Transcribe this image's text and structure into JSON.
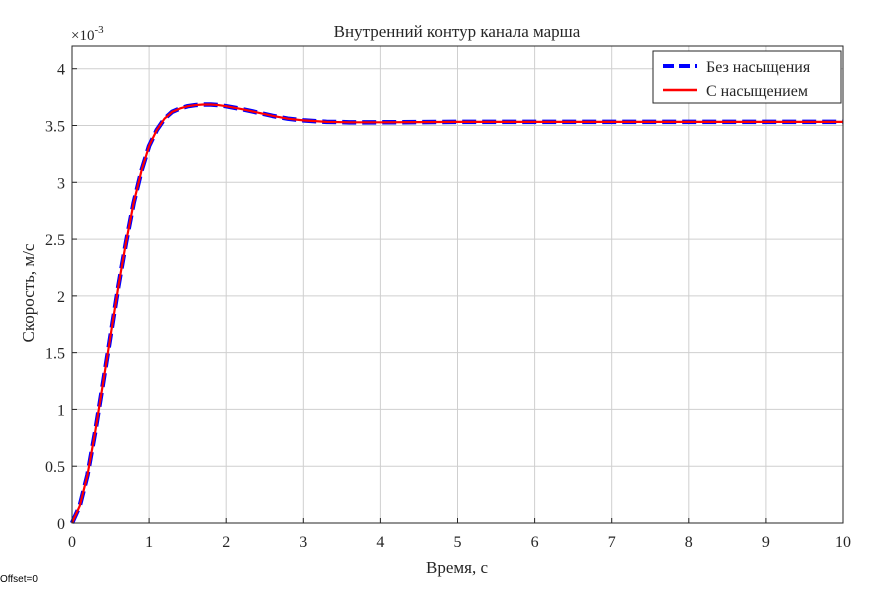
{
  "footer": {
    "offset_text": "Offset=0"
  },
  "chart_data": {
    "type": "line",
    "title": "Внутренний контур канала марша",
    "xlabel": "Время, с",
    "ylabel": "Скорость, м/с",
    "y_multiplier_base": "×10",
    "y_multiplier_exp": "-3",
    "xlim": [
      0,
      10
    ],
    "ylim": [
      0,
      4.2
    ],
    "x_ticks": [
      0,
      1,
      2,
      3,
      4,
      5,
      6,
      7,
      8,
      9,
      10
    ],
    "y_ticks": [
      0,
      0.5,
      1,
      1.5,
      2,
      2.5,
      3,
      3.5,
      4
    ],
    "y_tick_labels": [
      "0",
      "0.5",
      "1",
      "1.5",
      "2",
      "2.5",
      "3",
      "3.5",
      "4"
    ],
    "grid": true,
    "legend_position": "top-right",
    "x": [
      0,
      0.1,
      0.2,
      0.3,
      0.4,
      0.5,
      0.6,
      0.7,
      0.8,
      0.9,
      1.0,
      1.1,
      1.2,
      1.3,
      1.4,
      1.5,
      1.6,
      1.7,
      1.8,
      1.9,
      2.0,
      2.2,
      2.4,
      2.6,
      2.8,
      3.0,
      3.3,
      3.6,
      4.0,
      4.5,
      5.0,
      6.0,
      7.0,
      8.0,
      9.0,
      10.0
    ],
    "series": [
      {
        "name": "Без насыщения",
        "color": "#0000ff",
        "style": "dashed",
        "values": [
          0,
          0.15,
          0.42,
          0.8,
          1.22,
          1.65,
          2.08,
          2.47,
          2.82,
          3.1,
          3.32,
          3.46,
          3.56,
          3.62,
          3.65,
          3.67,
          3.68,
          3.685,
          3.685,
          3.68,
          3.67,
          3.645,
          3.615,
          3.585,
          3.56,
          3.545,
          3.532,
          3.528,
          3.528,
          3.53,
          3.532,
          3.532,
          3.532,
          3.532,
          3.532,
          3.532
        ]
      },
      {
        "name": "С насыщением",
        "color": "#ff0000",
        "style": "solid",
        "values": [
          0,
          0.15,
          0.42,
          0.8,
          1.22,
          1.65,
          2.08,
          2.47,
          2.82,
          3.1,
          3.32,
          3.46,
          3.56,
          3.62,
          3.65,
          3.67,
          3.68,
          3.685,
          3.685,
          3.68,
          3.67,
          3.645,
          3.615,
          3.585,
          3.56,
          3.545,
          3.532,
          3.528,
          3.528,
          3.53,
          3.532,
          3.532,
          3.532,
          3.532,
          3.532,
          3.532
        ]
      }
    ]
  }
}
